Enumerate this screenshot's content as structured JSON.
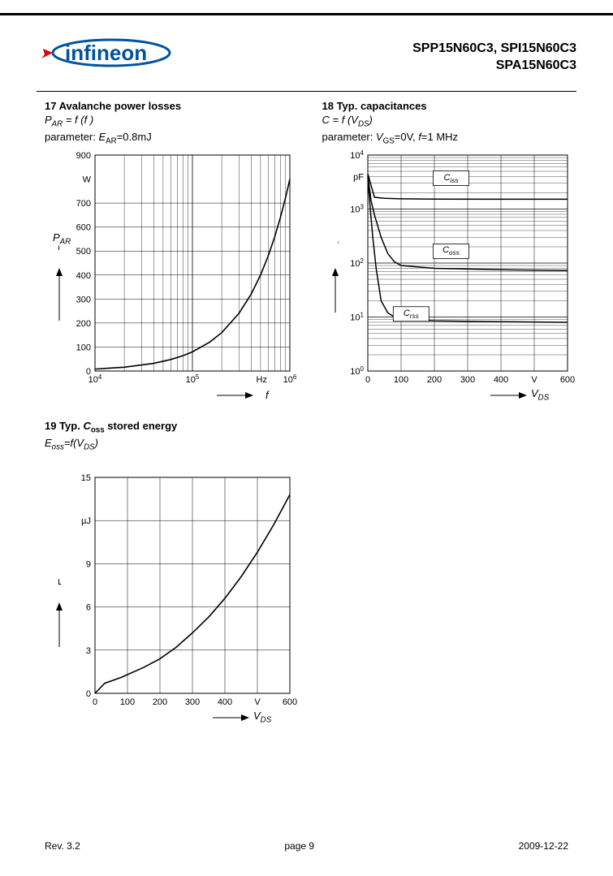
{
  "header": {
    "part_line1": "SPP15N60C3, SPI15N60C3",
    "part_line2": "SPA15N60C3"
  },
  "footer": {
    "rev": "Rev. 3.2",
    "page": "page 9",
    "date": "2009-12-22"
  },
  "chart17": {
    "title": "17 Avalanche power losses",
    "formula_html": "P<sub>AR</sub> = f (f )",
    "param_html": "parameter: <i>E</i><sub>AR</sub>=0.8mJ",
    "type": "line",
    "x_scale": "log",
    "y_scale": "linear",
    "x_unit": "Hz",
    "y_unit": "W",
    "x_label": "f",
    "y_label_html": "P<sub>AR</sub>",
    "xlim": [
      10000,
      1000000
    ],
    "ylim": [
      0,
      900
    ],
    "y_ticks": [
      0,
      100,
      200,
      300,
      400,
      500,
      600,
      700,
      900
    ],
    "x_major": [
      10000,
      100000,
      1000000
    ],
    "grid_color": "#000000",
    "line_color": "#000000",
    "line_width": 1.6,
    "background_color": "#ffffff",
    "data": [
      {
        "x": 10000,
        "y": 8
      },
      {
        "x": 20000,
        "y": 16
      },
      {
        "x": 40000,
        "y": 32
      },
      {
        "x": 60000,
        "y": 48
      },
      {
        "x": 80000,
        "y": 64
      },
      {
        "x": 100000,
        "y": 80
      },
      {
        "x": 150000,
        "y": 120
      },
      {
        "x": 200000,
        "y": 160
      },
      {
        "x": 300000,
        "y": 240
      },
      {
        "x": 400000,
        "y": 320
      },
      {
        "x": 500000,
        "y": 400
      },
      {
        "x": 600000,
        "y": 480
      },
      {
        "x": 700000,
        "y": 560
      },
      {
        "x": 800000,
        "y": 640
      },
      {
        "x": 900000,
        "y": 720
      },
      {
        "x": 1000000,
        "y": 800
      }
    ]
  },
  "chart18": {
    "title": "18 Typ. capacitances",
    "formula_html": "C = f (V<sub>DS</sub>)",
    "param_html": "parameter: <i>V</i><sub>GS</sub>=0V, <i>f</i>=1 MHz",
    "type": "line",
    "x_scale": "linear",
    "y_scale": "log",
    "x_unit": "V",
    "y_unit": "pF",
    "x_label_html": "V<sub>DS</sub>",
    "y_label_html": "C",
    "xlim": [
      0,
      600
    ],
    "ylim": [
      1,
      10000
    ],
    "x_tick_step": 100,
    "y_decades": [
      1,
      10,
      100,
      1000,
      10000
    ],
    "grid_color": "#000000",
    "line_color": "#000000",
    "line_width": 1.5,
    "background_color": "#ffffff",
    "series": [
      {
        "name": "Ciss",
        "label_html": "C<sub>iss</sub>",
        "label_pos": {
          "x": 250,
          "y": 3600
        },
        "data": [
          {
            "x": 0,
            "y": 4500
          },
          {
            "x": 20,
            "y": 1650
          },
          {
            "x": 50,
            "y": 1580
          },
          {
            "x": 100,
            "y": 1550
          },
          {
            "x": 200,
            "y": 1530
          },
          {
            "x": 400,
            "y": 1520
          },
          {
            "x": 600,
            "y": 1520
          }
        ]
      },
      {
        "name": "Coss",
        "label_html": "C<sub>oss</sub>",
        "label_pos": {
          "x": 250,
          "y": 160
        },
        "data": [
          {
            "x": 0,
            "y": 4200
          },
          {
            "x": 10,
            "y": 1400
          },
          {
            "x": 20,
            "y": 780
          },
          {
            "x": 40,
            "y": 300
          },
          {
            "x": 60,
            "y": 150
          },
          {
            "x": 80,
            "y": 105
          },
          {
            "x": 100,
            "y": 90
          },
          {
            "x": 200,
            "y": 80
          },
          {
            "x": 400,
            "y": 75
          },
          {
            "x": 600,
            "y": 73
          }
        ]
      },
      {
        "name": "Crss",
        "label_html": "C<sub>rss</sub>",
        "label_pos": {
          "x": 130,
          "y": 11
        },
        "data": [
          {
            "x": 0,
            "y": 4000
          },
          {
            "x": 8,
            "y": 900
          },
          {
            "x": 15,
            "y": 300
          },
          {
            "x": 25,
            "y": 80
          },
          {
            "x": 40,
            "y": 20
          },
          {
            "x": 60,
            "y": 12
          },
          {
            "x": 80,
            "y": 10
          },
          {
            "x": 100,
            "y": 9
          },
          {
            "x": 200,
            "y": 8.5
          },
          {
            "x": 400,
            "y": 8.2
          },
          {
            "x": 600,
            "y": 8
          }
        ]
      }
    ]
  },
  "chart19": {
    "title_html": "19 Typ. <i>C</i><sub>oss</sub> stored energy",
    "formula_html": "<i>E</i><sub>oss</sub>=<i>f</i>(<i>V</i><sub>DS</sub>)",
    "type": "line",
    "x_scale": "linear",
    "y_scale": "linear",
    "x_unit": "V",
    "y_unit": "µJ",
    "x_label_html": "V<sub>DS</sub>",
    "y_label_html": "E<sub>oss</sub>",
    "xlim": [
      0,
      600
    ],
    "ylim": [
      0,
      15
    ],
    "x_tick_step": 100,
    "y_tick_step": 3,
    "grid_color": "#000000",
    "line_color": "#000000",
    "line_width": 1.6,
    "background_color": "#ffffff",
    "data": [
      {
        "x": 0,
        "y": 0
      },
      {
        "x": 30,
        "y": 0.7
      },
      {
        "x": 80,
        "y": 1.1
      },
      {
        "x": 150,
        "y": 1.8
      },
      {
        "x": 200,
        "y": 2.4
      },
      {
        "x": 250,
        "y": 3.2
      },
      {
        "x": 300,
        "y": 4.2
      },
      {
        "x": 350,
        "y": 5.3
      },
      {
        "x": 400,
        "y": 6.6
      },
      {
        "x": 450,
        "y": 8.1
      },
      {
        "x": 500,
        "y": 9.8
      },
      {
        "x": 550,
        "y": 11.7
      },
      {
        "x": 600,
        "y": 13.8
      }
    ]
  }
}
